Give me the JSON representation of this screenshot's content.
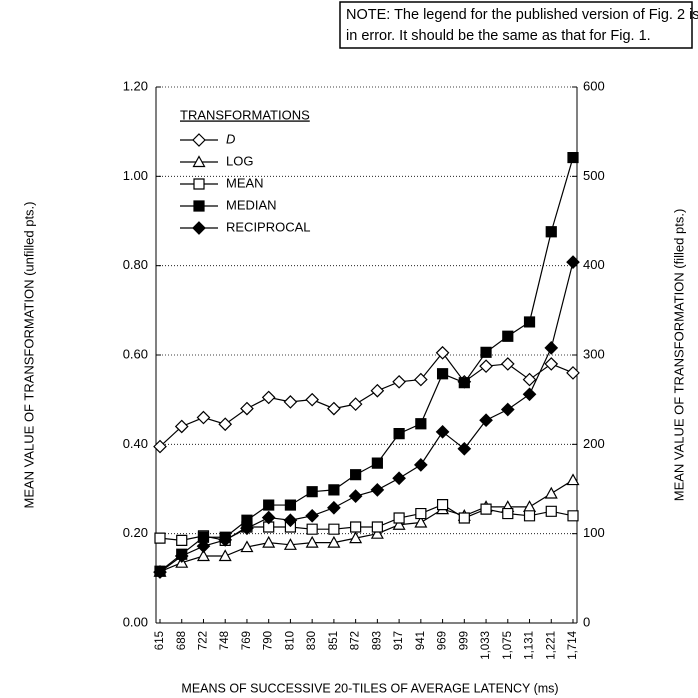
{
  "chart_data": {
    "type": "line",
    "note": [
      "NOTE:  The legend for the published version of Fig. 2 is □",
      "in error.  It should be the same as that for Fig. 1."
    ],
    "legend_title": "TRANSFORMATIONS",
    "legend": "top-left",
    "grid": true,
    "xlabel": "MEANS OF SUCCESSIVE 20-TILES OF AVERAGE LATENCY (ms)",
    "ylabel": "MEAN VALUE OF TRANSFORMATION (unfilled pts.)",
    "y2label": "MEAN VALUE OF TRANSFORMATION (filled pts.)",
    "categories": [
      "615",
      "688",
      "722",
      "748",
      "769",
      "790",
      "810",
      "830",
      "851",
      "872",
      "893",
      "917",
      "941",
      "969",
      "999",
      "1,033",
      "1,075",
      "1,131",
      "1,221",
      "1,714"
    ],
    "ylim": [
      0,
      1.2
    ],
    "yticks": [
      {
        "value": 0,
        "label": "0.00"
      },
      {
        "value": 0.2,
        "label": "0.20"
      },
      {
        "value": 0.4,
        "label": "0.40"
      },
      {
        "value": 0.6,
        "label": "0.60"
      },
      {
        "value": 0.8,
        "label": "0.80"
      },
      {
        "value": 1.0,
        "label": "1.00"
      },
      {
        "value": 1.2,
        "label": "1.20"
      }
    ],
    "y2lim": [
      0,
      600
    ],
    "y2ticks": [
      0,
      100,
      200,
      300,
      400,
      500,
      600
    ],
    "series": [
      {
        "name": "D",
        "color": "#000000",
        "marker": "diamond",
        "filled": false,
        "values": [
          0.395,
          0.44,
          0.46,
          0.445,
          0.48,
          0.505,
          0.495,
          0.5,
          0.48,
          0.49,
          0.52,
          0.54,
          0.545,
          0.605,
          0.54,
          0.575,
          0.58,
          0.545,
          0.58,
          0.56
        ]
      },
      {
        "name": "LOG",
        "color": "#000000",
        "marker": "triangle",
        "filled": false,
        "values": [
          0.115,
          0.135,
          0.15,
          0.15,
          0.17,
          0.18,
          0.175,
          0.18,
          0.18,
          0.19,
          0.2,
          0.22,
          0.225,
          0.255,
          0.24,
          0.26,
          0.26,
          0.26,
          0.29,
          0.32
        ]
      },
      {
        "name": "MEAN",
        "color": "#000000",
        "marker": "square",
        "filled": false,
        "values": [
          0.19,
          0.185,
          0.195,
          0.185,
          0.215,
          0.215,
          0.215,
          0.21,
          0.21,
          0.215,
          0.215,
          0.235,
          0.245,
          0.265,
          0.235,
          0.255,
          0.245,
          0.24,
          0.25,
          0.24
        ]
      },
      {
        "name": "MEDIAN",
        "color": "#000000",
        "marker": "square",
        "filled": true,
        "axis": "y2",
        "values": [
          58,
          77,
          96,
          96,
          115,
          132,
          132,
          147,
          149,
          166,
          179,
          212,
          223,
          279,
          269,
          303,
          321,
          337,
          438,
          521
        ]
      },
      {
        "name": "RECIPROCAL",
        "color": "#000000",
        "marker": "diamond",
        "filled": true,
        "axis": "y2",
        "values": [
          57,
          75,
          86,
          93,
          106,
          118,
          115,
          120,
          129,
          142,
          149,
          162,
          177,
          214,
          195,
          227,
          239,
          256,
          308,
          404
        ]
      }
    ]
  }
}
